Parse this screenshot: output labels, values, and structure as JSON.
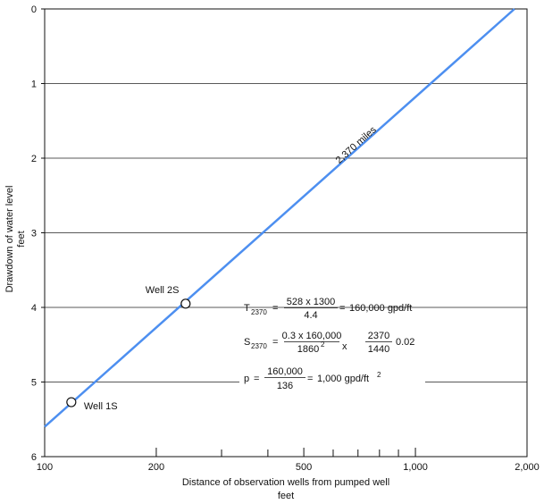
{
  "chart_data": {
    "type": "scatter",
    "x_scale": "log",
    "xlim": [
      100,
      2000
    ],
    "ylim": [
      0,
      6
    ],
    "y_inverted": true,
    "grid": "horizontal",
    "xlabel": "Distance of observation wells from pumped well",
    "xlabel_unit": "feet",
    "ylabel": "Drawdown of water level",
    "ylabel_unit": "feet",
    "x_ticks": [
      {
        "value": 100,
        "label": "100"
      },
      {
        "value": 200,
        "label": "200"
      },
      {
        "value": 500,
        "label": "500"
      },
      {
        "value": 1000,
        "label": "1,000"
      },
      {
        "value": 2000,
        "label": "2,000"
      }
    ],
    "x_minor_ticks": [
      300,
      400,
      600,
      700,
      800,
      900
    ],
    "y_ticks": [
      {
        "value": 0,
        "label": "0"
      },
      {
        "value": 1,
        "label": "1"
      },
      {
        "value": 2,
        "label": "2"
      },
      {
        "value": 3,
        "label": "3"
      },
      {
        "value": 4,
        "label": "4"
      },
      {
        "value": 5,
        "label": "5"
      },
      {
        "value": 6,
        "label": "6"
      }
    ],
    "points": [
      {
        "label": "Well 1S",
        "x": 118,
        "y": 5.27
      },
      {
        "label": "Well 2S",
        "x": 240,
        "y": 3.95
      }
    ],
    "line": {
      "x1": 100,
      "y1": 5.6,
      "x2": 1850,
      "y2": 0,
      "color": "#4d8ff0"
    },
    "line_label": "2,370 miles",
    "annotations": {
      "t": {
        "lhs": "T",
        "sub": "2370",
        "eq1": "=",
        "num": "528 x 1300",
        "den": "4.4",
        "eq2": "=",
        "result": "160,000 gpd/ft"
      },
      "s": {
        "lhs": "S",
        "sub": "2370",
        "eq1": "=",
        "num1": "0.3 x 160,000",
        "den1": "1860",
        "den1_sup": "2",
        "times": "x",
        "num2": "2370",
        "den2": "1440",
        "result": "0.02"
      },
      "p": {
        "lhs": "p",
        "eq1": "=",
        "num": "160,000",
        "den": "136",
        "eq2": "=",
        "result": "1,000 gpd/ft",
        "result_sup": "2"
      }
    }
  }
}
